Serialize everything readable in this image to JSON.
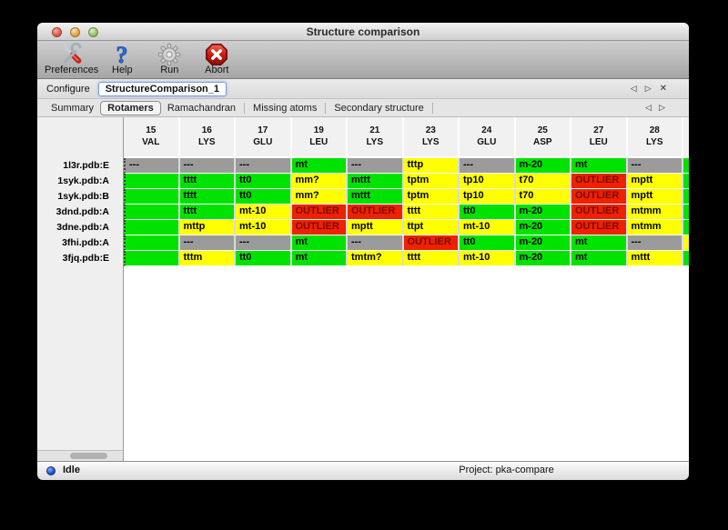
{
  "window": {
    "title": "Structure comparison"
  },
  "toolbar": {
    "buttons": [
      {
        "label": "Preferences",
        "icon": "tools-icon"
      },
      {
        "label": "Help",
        "icon": "help-icon"
      },
      {
        "label": "Run",
        "icon": "gear-icon"
      },
      {
        "label": "Abort",
        "icon": "abort-icon"
      }
    ]
  },
  "configure": {
    "label": "Configure",
    "value": "StructureComparison_1"
  },
  "nav_glyphs": {
    "prev": "◁",
    "next": "▷",
    "close": "✕"
  },
  "tabs": {
    "items": [
      "Summary",
      "Rotamers",
      "Ramachandran",
      "Missing atoms",
      "Secondary structure"
    ],
    "selected": "Rotamers"
  },
  "table": {
    "columns": [
      {
        "num": "15",
        "res": "VAL"
      },
      {
        "num": "16",
        "res": "LYS"
      },
      {
        "num": "17",
        "res": "GLU"
      },
      {
        "num": "19",
        "res": "LEU"
      },
      {
        "num": "21",
        "res": "LYS"
      },
      {
        "num": "23",
        "res": "LYS"
      },
      {
        "num": "24",
        "res": "GLU"
      },
      {
        "num": "25",
        "res": "ASP"
      },
      {
        "num": "27",
        "res": "LEU"
      },
      {
        "num": "28",
        "res": "LYS"
      }
    ],
    "legend_colors": {
      "green": "#00e300",
      "yellow": "#ffff00",
      "red": "#ee2100",
      "gray": "#9b9b9b"
    },
    "rows": [
      {
        "label": "1l3r.pdb:E",
        "edge": "green",
        "cells": [
          [
            "---",
            "gray"
          ],
          [
            "---",
            "gray"
          ],
          [
            "---",
            "gray"
          ],
          [
            "mt",
            "green"
          ],
          [
            "---",
            "gray"
          ],
          [
            "tttp",
            "yellow"
          ],
          [
            "---",
            "gray"
          ],
          [
            "m-20",
            "green"
          ],
          [
            "mt",
            "green"
          ],
          [
            "---",
            "gray"
          ]
        ]
      },
      {
        "label": "1syk.pdb:A",
        "edge": "green",
        "cells": [
          [
            "",
            "green"
          ],
          [
            "tttt",
            "green"
          ],
          [
            "tt0",
            "green"
          ],
          [
            "mm?",
            "yellow"
          ],
          [
            "mttt",
            "green"
          ],
          [
            "tptm",
            "yellow"
          ],
          [
            "tp10",
            "yellow"
          ],
          [
            "t70",
            "yellow"
          ],
          [
            "OUTLIER",
            "red"
          ],
          [
            "mptt",
            "yellow"
          ]
        ]
      },
      {
        "label": "1syk.pdb:B",
        "edge": "green",
        "cells": [
          [
            "",
            "green"
          ],
          [
            "tttt",
            "green"
          ],
          [
            "tt0",
            "green"
          ],
          [
            "mm?",
            "yellow"
          ],
          [
            "mttt",
            "green"
          ],
          [
            "tptm",
            "yellow"
          ],
          [
            "tp10",
            "yellow"
          ],
          [
            "t70",
            "yellow"
          ],
          [
            "OUTLIER",
            "red"
          ],
          [
            "mptt",
            "yellow"
          ]
        ]
      },
      {
        "label": "3dnd.pdb:A",
        "edge": "green",
        "cells": [
          [
            "",
            "green"
          ],
          [
            "tttt",
            "green"
          ],
          [
            "mt-10",
            "yellow"
          ],
          [
            "OUTLIER",
            "red"
          ],
          [
            "OUTLIER",
            "red"
          ],
          [
            "tttt",
            "yellow"
          ],
          [
            "tt0",
            "green"
          ],
          [
            "m-20",
            "green"
          ],
          [
            "OUTLIER",
            "red"
          ],
          [
            "mtmm",
            "yellow"
          ]
        ]
      },
      {
        "label": "3dne.pdb:A",
        "edge": "green",
        "cells": [
          [
            "",
            "green"
          ],
          [
            "mttp",
            "yellow"
          ],
          [
            "mt-10",
            "yellow"
          ],
          [
            "OUTLIER",
            "red"
          ],
          [
            "mptt",
            "yellow"
          ],
          [
            "ttpt",
            "yellow"
          ],
          [
            "mt-10",
            "yellow"
          ],
          [
            "m-20",
            "green"
          ],
          [
            "OUTLIER",
            "red"
          ],
          [
            "mtmm",
            "yellow"
          ]
        ]
      },
      {
        "label": "3fhi.pdb:A",
        "edge": "yellow",
        "cells": [
          [
            "",
            "green"
          ],
          [
            "---",
            "gray"
          ],
          [
            "---",
            "gray"
          ],
          [
            "mt",
            "green"
          ],
          [
            "---",
            "gray"
          ],
          [
            "OUTLIER",
            "red"
          ],
          [
            "tt0",
            "green"
          ],
          [
            "m-20",
            "green"
          ],
          [
            "mt",
            "green"
          ],
          [
            "---",
            "gray"
          ]
        ]
      },
      {
        "label": "3fjq.pdb:E",
        "edge": "green",
        "cells": [
          [
            "",
            "green"
          ],
          [
            "tttm",
            "yellow"
          ],
          [
            "tt0",
            "green"
          ],
          [
            "mt",
            "green"
          ],
          [
            "tmtm?",
            "yellow"
          ],
          [
            "tttt",
            "yellow"
          ],
          [
            "mt-10",
            "yellow"
          ],
          [
            "m-20",
            "green"
          ],
          [
            "mt",
            "green"
          ],
          [
            "mttt",
            "yellow"
          ]
        ]
      }
    ]
  },
  "statusbar": {
    "status": "Idle",
    "project": "Project: pka-compare"
  }
}
